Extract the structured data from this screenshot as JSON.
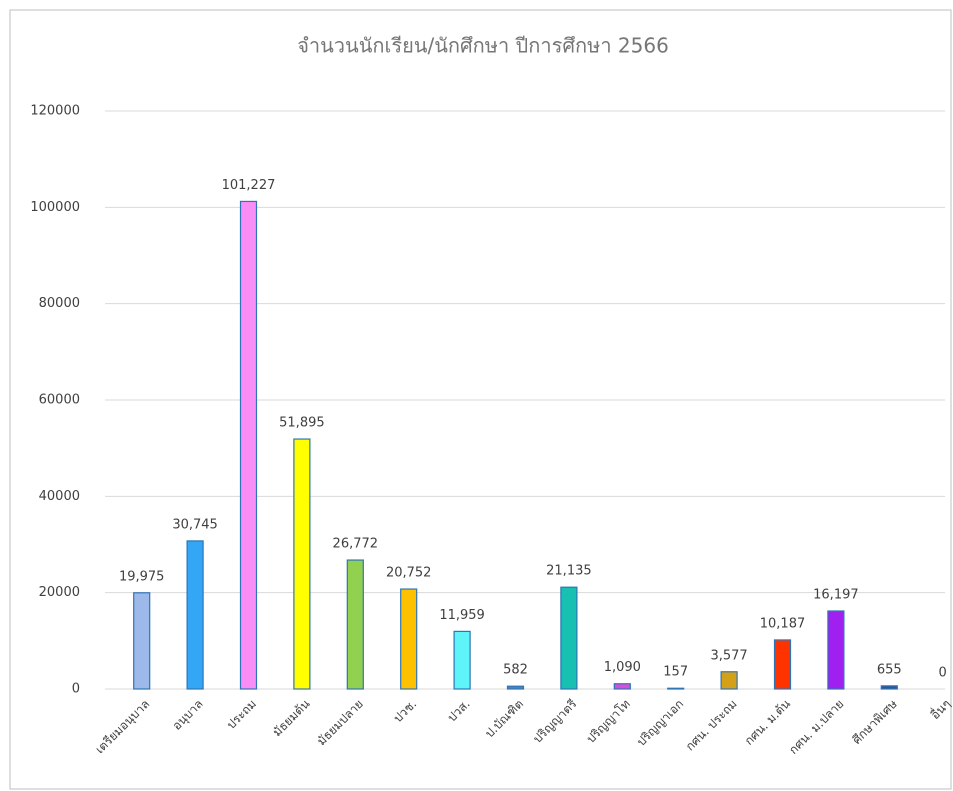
{
  "chart_data": {
    "type": "bar",
    "title": "จำนวนนักเรียน/นักศึกษา ปีการศึกษา 2566",
    "categories": [
      "เตรียมอนุบาล",
      "อนุบาล",
      "ประถม",
      "มัธยมต้น",
      "มัธยมปลาย",
      "ปวช.",
      "ปวส.",
      "ป.บัณฑิต",
      "ปริญญาตรี",
      "ปริญญาโท",
      "ปริญญาเอก",
      "กศน. ประถม",
      "กศน. ม.ต้น",
      "กศน. ม.ปลาย",
      "ศึกษาพิเศษ",
      "อื่นๆ"
    ],
    "values": [
      19975,
      30745,
      101227,
      51895,
      26772,
      20752,
      11959,
      582,
      21135,
      1090,
      157,
      3577,
      10187,
      16197,
      655,
      0
    ],
    "value_labels": [
      "19,975",
      "30,745",
      "101,227",
      "51,895",
      "26,772",
      "20,752",
      "11,959",
      "582",
      "21,135",
      "1,090",
      "157",
      "3,577",
      "10,187",
      "16,197",
      "655",
      "0"
    ],
    "colors": [
      "#9db9ea",
      "#33a6f5",
      "#f98cf5",
      "#ffff00",
      "#92d050",
      "#ffc000",
      "#5ef4f9",
      "#4f81bd",
      "#17c0b0",
      "#d64fd8",
      "#b4c7e7",
      "#d4a017",
      "#ff3300",
      "#a020f0",
      "#2f5597",
      "#4472c4"
    ],
    "ylim": [
      0,
      120000
    ],
    "yticks": [
      0,
      20000,
      40000,
      60000,
      80000,
      100000,
      120000
    ],
    "grid": true
  }
}
